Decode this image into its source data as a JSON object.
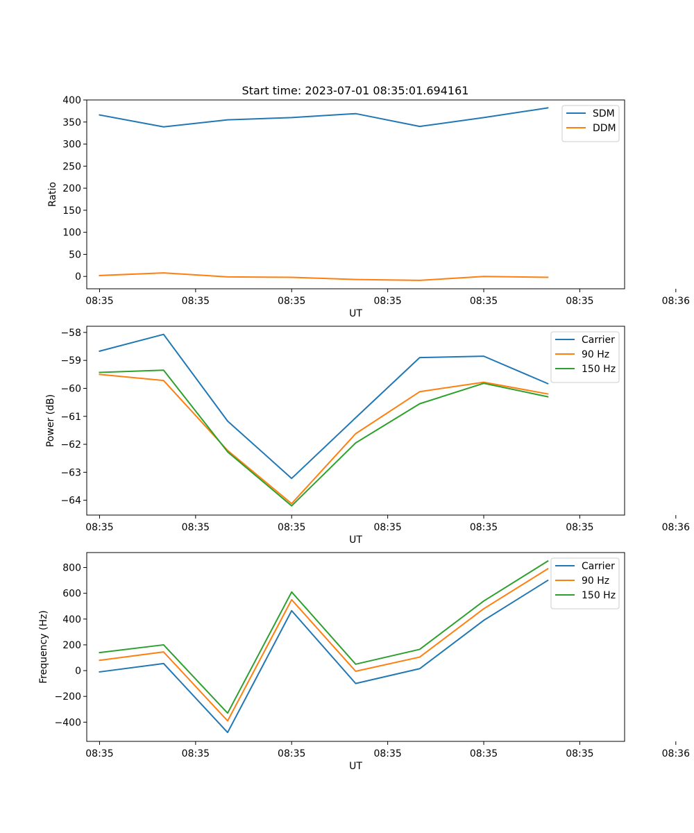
{
  "figure": {
    "title": "Start time: 2023-07-01 08:35:01.694161"
  },
  "colors": {
    "blue": "#1f77b4",
    "orange": "#ff7f0e",
    "green": "#2ca02c"
  },
  "chart_data": [
    {
      "type": "line",
      "title": "Start time: 2023-07-01 08:35:01.694161",
      "xlabel": "UT",
      "ylabel": "Ratio",
      "x": [
        1,
        2,
        3,
        4,
        5,
        6,
        7,
        8
      ],
      "xlim": [
        0.8,
        9.2
      ],
      "xticks": [
        1,
        2.5,
        4,
        5.5,
        7,
        8.5,
        10
      ],
      "xticklabels": [
        "08:35",
        "08:35",
        "08:35",
        "08:35",
        "08:35",
        "08:35",
        "08:36"
      ],
      "ylim": [
        -28,
        400
      ],
      "yticks": [
        0,
        50,
        100,
        150,
        200,
        250,
        300,
        350,
        400
      ],
      "yticklabels": [
        "0",
        "50",
        "100",
        "150",
        "200",
        "250",
        "300",
        "350",
        "400"
      ],
      "legend": "top-right",
      "series": [
        {
          "name": "SDM",
          "color": "#1f77b4",
          "values": [
            366,
            339,
            355,
            360,
            369,
            340,
            360,
            382
          ]
        },
        {
          "name": "DDM",
          "color": "#ff7f0e",
          "values": [
            2,
            8,
            -1,
            -2,
            -7,
            -9,
            0,
            -2
          ]
        }
      ]
    },
    {
      "type": "line",
      "title": "",
      "xlabel": "UT",
      "ylabel": "Power (dB)",
      "x": [
        1,
        2,
        3,
        4,
        5,
        6,
        7,
        8
      ],
      "xlim": [
        0.8,
        9.2
      ],
      "xticks": [
        1,
        2.5,
        4,
        5.5,
        7,
        8.5,
        10
      ],
      "xticklabels": [
        "08:35",
        "08:35",
        "08:35",
        "08:35",
        "08:35",
        "08:35",
        "08:36"
      ],
      "ylim": [
        -64.53,
        -57.78
      ],
      "yticks": [
        -64,
        -63,
        -62,
        -61,
        -60,
        -59,
        -58
      ],
      "yticklabels": [
        "−64",
        "−63",
        "−62",
        "−61",
        "−60",
        "−59",
        "−58"
      ],
      "legend": "top-right",
      "series": [
        {
          "name": "Carrier",
          "color": "#1f77b4",
          "values": [
            -58.67,
            -58.07,
            -61.17,
            -63.22,
            -61.05,
            -58.9,
            -58.85,
            -59.83
          ]
        },
        {
          "name": "90 Hz",
          "color": "#ff7f0e",
          "values": [
            -59.5,
            -59.72,
            -62.22,
            -64.12,
            -61.62,
            -60.12,
            -59.78,
            -60.2
          ]
        },
        {
          "name": "150 Hz",
          "color": "#2ca02c",
          "values": [
            -59.43,
            -59.35,
            -62.27,
            -64.2,
            -61.95,
            -60.55,
            -59.82,
            -60.3
          ]
        }
      ]
    },
    {
      "type": "line",
      "title": "",
      "xlabel": "UT",
      "ylabel": "Frequency (Hz)",
      "x": [
        1,
        2,
        3,
        4,
        5,
        6,
        7,
        8
      ],
      "xlim": [
        0.8,
        9.2
      ],
      "xticks": [
        1,
        2.5,
        4,
        5.5,
        7,
        8.5,
        10
      ],
      "xticklabels": [
        "08:35",
        "08:35",
        "08:35",
        "08:35",
        "08:35",
        "08:35",
        "08:36"
      ],
      "ylim": [
        -549,
        916
      ],
      "yticks": [
        -400,
        -200,
        0,
        200,
        400,
        600,
        800
      ],
      "yticklabels": [
        "−400",
        "−200",
        "0",
        "200",
        "400",
        "600",
        "800"
      ],
      "legend": "top-right",
      "series": [
        {
          "name": "Carrier",
          "color": "#1f77b4",
          "values": [
            -10,
            55,
            -480,
            465,
            -100,
            15,
            390,
            700
          ]
        },
        {
          "name": "90 Hz",
          "color": "#ff7f0e",
          "values": [
            80,
            145,
            -390,
            550,
            -5,
            105,
            480,
            790
          ]
        },
        {
          "name": "150 Hz",
          "color": "#2ca02c",
          "values": [
            140,
            200,
            -330,
            610,
            50,
            165,
            540,
            850
          ]
        }
      ]
    }
  ]
}
